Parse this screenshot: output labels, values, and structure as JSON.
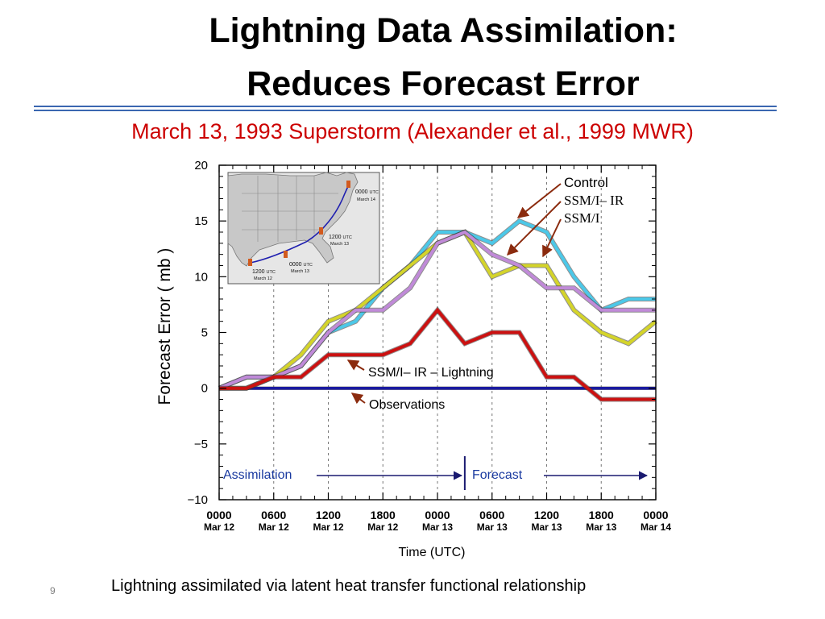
{
  "slide": {
    "title_line1": "Lightning Data Assimilation:",
    "title_line2": "Reduces Forecast Error",
    "subtitle": "March 13, 1993 Superstorm (Alexander et al., 1999 MWR)",
    "page_number": "9",
    "caption": "Lightning assimilated via latent heat transfer functional relationship"
  },
  "colors": {
    "title_rule": "#3b67b0",
    "subtitle": "#cc0000",
    "control": "#4cc8e8",
    "ssmi_ir": "#d4d42a",
    "ssmi": "#c08ad8",
    "ssmi_ir_lightning": "#cc1111",
    "observations": "#1a1aa0",
    "annotation_arrow": "#8b2b0e",
    "phase_arrow": "#1a1a70"
  },
  "chart_data": {
    "type": "line",
    "ylabel": "Forecast Error  ( mb )",
    "xlabel": "Time (UTC)",
    "ylim": [
      -10,
      20
    ],
    "yticks": [
      -10,
      -5,
      0,
      5,
      10,
      15,
      20
    ],
    "ytick_labels": [
      "−10",
      "−5",
      "0",
      "5",
      "10",
      "15",
      "20"
    ],
    "xticks": [
      {
        "x": 0,
        "time": "0000",
        "date": "Mar 12"
      },
      {
        "x": 6,
        "time": "0600",
        "date": "Mar 12"
      },
      {
        "x": 12,
        "time": "1200",
        "date": "Mar 12"
      },
      {
        "x": 18,
        "time": "1800",
        "date": "Mar 12"
      },
      {
        "x": 24,
        "time": "0000",
        "date": "Mar 13"
      },
      {
        "x": 30,
        "time": "0600",
        "date": "Mar 13"
      },
      {
        "x": 36,
        "time": "1200",
        "date": "Mar 13"
      },
      {
        "x": 42,
        "time": "1800",
        "date": "Mar 13"
      },
      {
        "x": 48,
        "time": "0000",
        "date": "Mar 14"
      }
    ],
    "xlim": [
      0,
      48
    ],
    "assimilation_end_x": 27,
    "x": [
      0,
      3,
      6,
      9,
      12,
      15,
      18,
      21,
      24,
      27,
      30,
      33,
      36,
      39,
      42,
      45,
      48
    ],
    "series": [
      {
        "key": "observations",
        "values": [
          0,
          0,
          0,
          0,
          0,
          0,
          0,
          0,
          0,
          0,
          0,
          0,
          0,
          0,
          0,
          0,
          0
        ]
      },
      {
        "key": "control",
        "values": [
          0,
          1,
          1,
          2,
          5,
          6,
          9,
          11,
          14,
          14,
          13,
          15,
          14,
          10,
          7,
          8,
          8
        ]
      },
      {
        "key": "ssmi_ir",
        "values": [
          0,
          0,
          1,
          3,
          6,
          7,
          9,
          11,
          13,
          14,
          10,
          11,
          11,
          7,
          5,
          4,
          6
        ]
      },
      {
        "key": "ssmi",
        "values": [
          0,
          1,
          1,
          2,
          5,
          7,
          7,
          9,
          13,
          14,
          12,
          11,
          9,
          9,
          7,
          7,
          7
        ]
      },
      {
        "key": "ssmi_ir_lightning",
        "values": [
          0,
          0,
          1,
          1,
          3,
          3,
          3,
          4,
          7,
          4,
          5,
          5,
          1,
          1,
          -1,
          -1,
          -1
        ]
      }
    ],
    "labels": {
      "control": "Control",
      "ssmi_ir": "SSM/I– IR",
      "ssmi": "SSM/I",
      "ssmi_ir_lightning": "SSM/I– IR – Lightning",
      "observations": "Observations",
      "assimilation": "Assimilation",
      "forecast": "Forecast"
    },
    "inset_map": {
      "labels": [
        {
          "time": "0000",
          "unit": "UTC",
          "date": "March 14"
        },
        {
          "time": "1200",
          "unit": "UTC",
          "date": "March 13"
        },
        {
          "time": "0000",
          "unit": "UTC",
          "date": "March 13"
        },
        {
          "time": "1200",
          "unit": "UTC",
          "date": "March 12"
        }
      ]
    }
  }
}
